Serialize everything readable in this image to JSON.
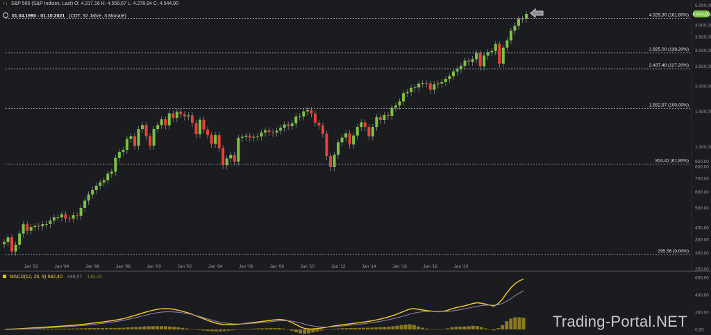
{
  "header": {
    "instrument": "S&P 500 (S&P Indizes, Last)",
    "ohlc": "O: 4.317,16  H: 4.558,67  L: 4.278,94  C: 4.544,90",
    "range": "01.04.1990 - 01.10.2021",
    "interval": "(CDT, 32 Jahre, 3 Monate)"
  },
  "price_badge": "4.544,90",
  "watermark": "Trading-Portal.NET",
  "macd_legend": {
    "label": "MACD(12, 26, 9)",
    "macd": "582,40",
    "signal": "446,07",
    "histogram": "136,33"
  },
  "colors": {
    "background": "#1b1c1f",
    "up": "#7cc242",
    "down": "#e8413c",
    "macd_line": "#f2c81e",
    "signal_line": "#8c7fae",
    "histogram": "#8a7a22",
    "badge": "#7cc242"
  },
  "chart_data": [
    {
      "type": "candlestick",
      "title": "S&P 500 (S&P Indizes, Last)",
      "scale": "log",
      "ylim": [
        250,
        5000
      ],
      "x_ticks": [
        "Jan '92",
        "Jan '94",
        "Jan '96",
        "Jan '98",
        "Jan '00",
        "Jan '02",
        "Jan '04",
        "Jan '06",
        "Jan '08",
        "Jan '10",
        "Jan '12",
        "Jan '14",
        "Jan '16",
        "Jan '18",
        "Jan '20"
      ],
      "y_ticks": [
        "5.000,00",
        "4.500,00",
        "4.000,00",
        "3.500,00",
        "3.000,00",
        "2.500,00",
        "2.000,00",
        "1.500,00",
        "1.000,00",
        "850,00",
        "800,00",
        "700,00",
        "600,00",
        "500,00",
        "400,00",
        "350,00",
        "300,00",
        "250,00"
      ],
      "fib_levels": [
        {
          "value": 4325.3,
          "label": "4.325,30 (161,80%)"
        },
        {
          "value": 2925.0,
          "label": "2.925,00 (138,20%)"
        },
        {
          "value": 2437.48,
          "label": "2.437,48 (127,20%)"
        },
        {
          "value": 1552.87,
          "label": "1.552,87 (100,00%)"
        },
        {
          "value": 824.41,
          "label": "824,41 (61,80%)"
        },
        {
          "value": 295.56,
          "label": "295,56 (0,00%)"
        }
      ],
      "grid": false,
      "closes_quarterly": [
        340,
        359,
        306,
        330,
        375,
        417,
        387,
        404,
        409,
        408,
        417,
        418,
        435,
        451,
        451,
        466,
        445,
        444,
        462,
        459,
        501,
        545,
        584,
        615,
        645,
        670,
        687,
        740,
        757,
        885,
        947,
        970,
        1101,
        1133,
        1017,
        1229,
        1286,
        1133,
        1017,
        1229,
        1286,
        1372,
        1283,
        1469,
        1395,
        1499,
        1455,
        1421,
        1436,
        1320,
        1160,
        1366,
        1224,
        1148,
        1040,
        1148,
        989,
        815,
        880,
        916,
        849,
        1112,
        1126,
        1140,
        1114,
        1126,
        1131,
        1181,
        1211,
        1191,
        1180,
        1207,
        1248,
        1294,
        1270,
        1311,
        1418,
        1421,
        1503,
        1526,
        1468,
        1322,
        1280,
        1166,
        903,
        797,
        919,
        1057,
        1115,
        1169,
        1031,
        1141,
        1258,
        1326,
        1257,
        1131,
        1258,
        1408,
        1362,
        1440,
        1426,
        1569,
        1606,
        1682,
        1848,
        1872,
        1960,
        1972,
        2059,
        2068,
        2063,
        1920,
        2044,
        2060,
        2099,
        2168,
        2239,
        2363,
        2423,
        2519,
        2674,
        2641,
        2718,
        2914,
        2507,
        2834,
        2942,
        2977,
        3231,
        2585,
        3100,
        3363,
        3756,
        3973,
        4298,
        4307,
        4545
      ],
      "start_period": "1990 Q2",
      "period": "3 Monate"
    },
    {
      "type": "line",
      "title": "MACD(12, 26, 9)",
      "ylim": [
        0,
        600
      ],
      "y_ticks": [
        "600,00",
        "400,00",
        "200,00",
        "0,00"
      ],
      "series": [
        {
          "name": "MACD",
          "values": [
            2,
            3,
            5,
            7,
            10,
            13,
            16,
            19,
            22,
            25,
            28,
            31,
            34,
            37,
            40,
            44,
            48,
            52,
            57,
            62,
            68,
            74,
            80,
            86,
            93,
            100,
            107,
            115,
            125,
            138,
            152,
            166,
            181,
            196,
            210,
            222,
            232,
            238,
            240,
            238,
            232,
            222,
            210,
            196,
            180,
            162,
            143,
            124,
            105,
            88,
            73,
            62,
            56,
            54,
            55,
            58,
            63,
            69,
            75,
            81,
            87,
            93,
            99,
            106,
            111,
            115,
            111,
            100,
            80,
            55,
            30,
            12,
            5,
            6,
            10,
            16,
            24,
            32,
            40,
            47,
            54,
            60,
            66,
            72,
            78,
            85,
            92,
            100,
            110,
            120,
            132,
            145,
            160,
            178,
            198,
            218,
            235,
            240,
            232,
            225,
            218,
            212,
            206,
            205,
            210,
            222,
            238,
            252,
            262,
            272,
            285,
            300,
            308,
            302,
            292,
            280,
            270,
            300,
            350,
            420,
            480,
            530,
            560,
            582
          ],
          "color": "#f2c81e"
        },
        {
          "name": "Signal",
          "values": [
            1,
            2,
            3,
            4,
            6,
            8,
            10,
            12,
            14,
            16,
            19,
            22,
            25,
            28,
            31,
            34,
            37,
            40,
            44,
            48,
            53,
            58,
            64,
            70,
            76,
            83,
            90,
            97,
            105,
            115,
            126,
            137,
            149,
            161,
            173,
            184,
            193,
            199,
            203,
            204,
            202,
            198,
            192,
            184,
            175,
            164,
            151,
            137,
            122,
            108,
            95,
            84,
            75,
            69,
            65,
            63,
            63,
            64,
            67,
            71,
            75,
            80,
            85,
            90,
            95,
            99,
            101,
            100,
            96,
            88,
            76,
            62,
            50,
            40,
            33,
            29,
            28,
            29,
            32,
            36,
            40,
            45,
            50,
            55,
            60,
            66,
            72,
            79,
            86,
            94,
            103,
            112,
            123,
            135,
            148,
            162,
            176,
            189,
            198,
            205,
            208,
            209,
            208,
            207,
            207,
            209,
            214,
            221,
            229,
            238,
            248,
            258,
            268,
            275,
            280,
            282,
            281,
            285,
            300,
            325,
            355,
            390,
            420,
            446
          ],
          "color": "#8c7fae"
        }
      ],
      "histogram": [
        1,
        1,
        2,
        3,
        4,
        5,
        6,
        7,
        8,
        9,
        9,
        9,
        9,
        9,
        9,
        10,
        11,
        12,
        13,
        14,
        15,
        16,
        16,
        16,
        17,
        17,
        17,
        18,
        20,
        23,
        26,
        29,
        32,
        35,
        37,
        38,
        39,
        39,
        37,
        34,
        30,
        24,
        18,
        12,
        5,
        -2,
        -8,
        -13,
        -17,
        -20,
        -22,
        -22,
        -19,
        -15,
        -10,
        -5,
        0,
        5,
        8,
        10,
        12,
        13,
        14,
        16,
        16,
        16,
        10,
        0,
        -16,
        -33,
        -46,
        -50,
        -45,
        -34,
        -23,
        -13,
        -4,
        3,
        8,
        11,
        14,
        15,
        16,
        17,
        18,
        19,
        20,
        21,
        24,
        26,
        29,
        33,
        37,
        43,
        50,
        56,
        59,
        51,
        34,
        20,
        10,
        3,
        -2,
        -2,
        3,
        13,
        24,
        31,
        33,
        34,
        37,
        42,
        40,
        27,
        12,
        -2,
        -11,
        15,
        50,
        95,
        125,
        140,
        140,
        136
      ]
    }
  ]
}
